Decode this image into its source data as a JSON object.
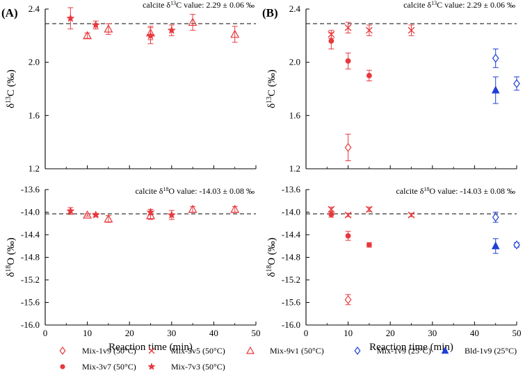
{
  "panel_labels": [
    "(A)",
    "(B)"
  ],
  "x_axis_label": "Reaction time (min)",
  "y_axis_label_c": "δ13C (‰)",
  "y_axis_label_o": "δ18O (‰)",
  "ref_c_text": "calcite δ13C value: 2.29 ± 0.06 ‰",
  "ref_o_text": "calcite δ18O value: -14.03 ± 0.08 ‰",
  "colors": {
    "red": "#e8383d",
    "blue": "#1f3fd6"
  },
  "legend": [
    {
      "key": "mix1v9_50",
      "label": "Mix-1v9 (50°C)",
      "marker": "open-diamond",
      "color": "#e8383d"
    },
    {
      "key": "mix5v5_50",
      "label": "Mix-5v5 (50°C)",
      "marker": "cross",
      "color": "#e8383d"
    },
    {
      "key": "mix9v1_50",
      "label": "Mix-9v1 (50°C)",
      "marker": "open-triangle",
      "color": "#e8383d"
    },
    {
      "key": "mix1v9_25",
      "label": "Mix-1v9 (25°C)",
      "marker": "open-diamond",
      "color": "#1f3fd6"
    },
    {
      "key": "bld1v9_25",
      "label": "Bld-1v9 (25°C)",
      "marker": "filled-triangle",
      "color": "#1f3fd6"
    },
    {
      "key": "mix3v7_50",
      "label": "Mix-3v7 (50°C)",
      "marker": "filled-circle",
      "color": "#e8383d"
    },
    {
      "key": "mix7v3_50",
      "label": "Mix-7v3 (50°C)",
      "marker": "star",
      "color": "#e8383d"
    }
  ],
  "chart_data": [
    {
      "panel": "A",
      "type": "scatter",
      "xlabel": "",
      "ylabel": "δ13C (‰)",
      "xlim": [
        0,
        50
      ],
      "ylim": [
        1.2,
        2.4
      ],
      "xticks": [
        0,
        10,
        20,
        30,
        40,
        50
      ],
      "yticks": [
        1.2,
        1.6,
        2.0,
        2.4
      ],
      "ytick_labels": [
        "1.2",
        "1.6",
        "2.0",
        "2.4"
      ],
      "show_xtick_labels": false,
      "reference_line": 2.29,
      "reference_label": "calcite δ13C value: 2.29 ± 0.06 ‰",
      "series": [
        {
          "key": "mix9v1_50",
          "marker": "open-triangle",
          "color": "#e8383d",
          "points": [
            {
              "x": 10,
              "y": 2.2,
              "err": 0.02
            },
            {
              "x": 15,
              "y": 2.25,
              "err": 0.04
            },
            {
              "x": 25,
              "y": 2.22,
              "err": 0.05
            },
            {
              "x": 35,
              "y": 2.3,
              "err": 0.06
            },
            {
              "x": 45,
              "y": 2.21,
              "err": 0.06
            }
          ]
        },
        {
          "key": "mix7v3_50",
          "marker": "star",
          "color": "#e8383d",
          "points": [
            {
              "x": 6,
              "y": 2.33,
              "err": 0.08
            },
            {
              "x": 12,
              "y": 2.28,
              "err": 0.03
            },
            {
              "x": 25,
              "y": 2.2,
              "err": 0.06
            },
            {
              "x": 30,
              "y": 2.24,
              "err": 0.04
            }
          ]
        }
      ]
    },
    {
      "panel": "B",
      "type": "scatter",
      "xlabel": "",
      "ylabel": "δ13C (‰)",
      "xlim": [
        0,
        50
      ],
      "ylim": [
        1.2,
        2.4
      ],
      "xticks": [
        0,
        10,
        20,
        30,
        40,
        50
      ],
      "yticks": [
        1.2,
        1.6,
        2.0,
        2.4
      ],
      "ytick_labels": [
        "1.2",
        "1.6",
        "2.0",
        "2.4"
      ],
      "show_xtick_labels": false,
      "reference_line": 2.29,
      "reference_label": "calcite δ13C value: 2.29 ± 0.06 ‰",
      "series": [
        {
          "key": "mix5v5_50",
          "marker": "cross",
          "color": "#e8383d",
          "points": [
            {
              "x": 6,
              "y": 2.21,
              "err": 0.03
            },
            {
              "x": 10,
              "y": 2.26,
              "err": 0.04
            },
            {
              "x": 15,
              "y": 2.24,
              "err": 0.04
            },
            {
              "x": 25,
              "y": 2.24,
              "err": 0.04
            }
          ]
        },
        {
          "key": "mix3v7_50",
          "marker": "filled-circle",
          "color": "#e8383d",
          "points": [
            {
              "x": 6,
              "y": 2.16,
              "err": 0.06
            },
            {
              "x": 10,
              "y": 2.01,
              "err": 0.06
            },
            {
              "x": 15,
              "y": 1.9,
              "err": 0.04
            }
          ]
        },
        {
          "key": "mix1v9_50",
          "marker": "open-diamond",
          "color": "#e8383d",
          "points": [
            {
              "x": 10,
              "y": 1.36,
              "err": 0.1
            }
          ]
        },
        {
          "key": "mix1v9_25",
          "marker": "open-diamond",
          "color": "#1f3fd6",
          "points": [
            {
              "x": 45,
              "y": 2.03,
              "err": 0.07
            },
            {
              "x": 50,
              "y": 1.84,
              "err": 0.05
            }
          ]
        },
        {
          "key": "bld1v9_25",
          "marker": "filled-triangle",
          "color": "#1f3fd6",
          "points": [
            {
              "x": 45,
              "y": 1.79,
              "err": 0.1
            }
          ]
        }
      ]
    },
    {
      "panel": "A-bottom",
      "type": "scatter",
      "xlabel": "Reaction time (min)",
      "ylabel": "δ18O (‰)",
      "xlim": [
        0,
        50
      ],
      "ylim": [
        -16.0,
        -13.6
      ],
      "xticks": [
        0,
        10,
        20,
        30,
        40,
        50
      ],
      "yticks": [
        -16.0,
        -15.6,
        -15.2,
        -14.8,
        -14.4,
        -14.0,
        -13.6
      ],
      "ytick_labels": [
        "-16.0",
        "-15.6",
        "-15.2",
        "-14.8",
        "-14.4",
        "-14.0",
        "-13.6"
      ],
      "show_xtick_labels": true,
      "reference_line": -14.03,
      "reference_label": "calcite δ18O value: -14.03 ± 0.08 ‰",
      "series": [
        {
          "key": "mix9v1_50",
          "marker": "open-triangle",
          "color": "#e8383d",
          "points": [
            {
              "x": 10,
              "y": -14.05,
              "err": 0.02
            },
            {
              "x": 15,
              "y": -14.12,
              "err": 0.06
            },
            {
              "x": 25,
              "y": -14.06,
              "err": 0.07
            },
            {
              "x": 35,
              "y": -13.95,
              "err": 0.05
            },
            {
              "x": 45,
              "y": -13.95,
              "err": 0.05
            }
          ]
        },
        {
          "key": "mix7v3_50",
          "marker": "star",
          "color": "#e8383d",
          "points": [
            {
              "x": 6,
              "y": -13.98,
              "err": 0.06
            },
            {
              "x": 12,
              "y": -14.05,
              "err": 0.03
            },
            {
              "x": 25,
              "y": -14.0,
              "err": 0.05
            },
            {
              "x": 30,
              "y": -14.05,
              "err": 0.08
            }
          ]
        }
      ]
    },
    {
      "panel": "B-bottom",
      "type": "scatter",
      "xlabel": "Reaction time (min)",
      "ylabel": "δ18O (‰)",
      "xlim": [
        0,
        50
      ],
      "ylim": [
        -16.0,
        -13.6
      ],
      "xticks": [
        0,
        10,
        20,
        30,
        40,
        50
      ],
      "yticks": [
        -16.0,
        -15.6,
        -15.2,
        -14.8,
        -14.4,
        -14.0,
        -13.6
      ],
      "ytick_labels": [
        "-16.0",
        "-15.6",
        "-15.2",
        "-14.8",
        "-14.4",
        "-14.0",
        "-13.6"
      ],
      "show_xtick_labels": true,
      "reference_line": -14.03,
      "reference_label": "calcite δ18O value: -14.03 ± 0.08 ‰",
      "series": [
        {
          "key": "mix5v5_50",
          "marker": "cross",
          "color": "#e8383d",
          "points": [
            {
              "x": 6,
              "y": -13.95,
              "err": 0.04
            },
            {
              "x": 10,
              "y": -14.05,
              "err": 0.03
            },
            {
              "x": 15,
              "y": -13.95,
              "err": 0.04
            },
            {
              "x": 25,
              "y": -14.05,
              "err": 0.03
            }
          ]
        },
        {
          "key": "mix3v7_50",
          "marker": "filled-circle",
          "color": "#e8383d",
          "points": [
            {
              "x": 6,
              "y": -14.04,
              "err": 0.05
            },
            {
              "x": 10,
              "y": -14.42,
              "err": 0.08
            },
            {
              "x": 15,
              "y": -14.58,
              "err": 0.04
            }
          ]
        },
        {
          "key": "mix1v9_50",
          "marker": "open-diamond",
          "color": "#e8383d",
          "points": [
            {
              "x": 10,
              "y": -15.55,
              "err": 0.09
            }
          ]
        },
        {
          "key": "mix1v9_25",
          "marker": "open-diamond",
          "color": "#1f3fd6",
          "points": [
            {
              "x": 45,
              "y": -14.09,
              "err": 0.09
            },
            {
              "x": 50,
              "y": -14.58,
              "err": 0.04
            }
          ]
        },
        {
          "key": "bld1v9_25",
          "marker": "filled-triangle",
          "color": "#1f3fd6",
          "points": [
            {
              "x": 45,
              "y": -14.6,
              "err": 0.13
            }
          ]
        }
      ]
    }
  ]
}
